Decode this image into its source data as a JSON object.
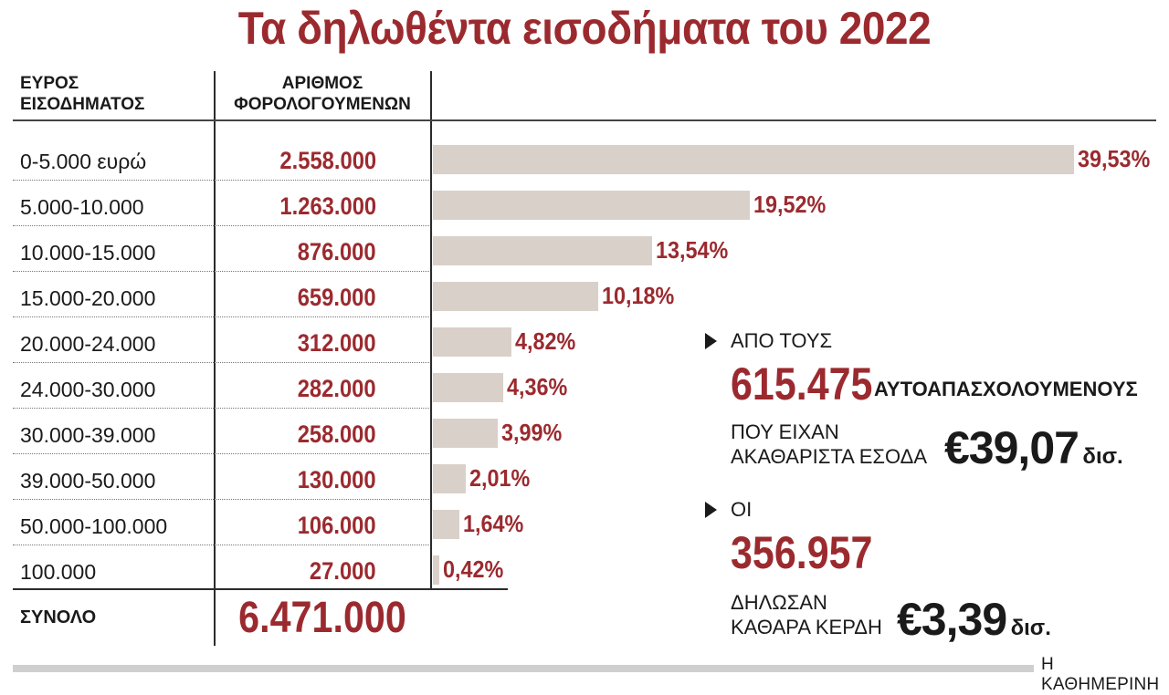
{
  "title": "Τα δηλωθέντα εισοδήματα του 2022",
  "chart_data": {
    "type": "bar",
    "orientation": "horizontal",
    "columns": {
      "range_header": [
        "ΕΥΡΟΣ",
        "ΕΙΣΟΔΗΜΑΤΟΣ"
      ],
      "count_header": [
        "ΑΡΙΘΜΟΣ",
        "ΦΟΡΟΛΟΓΟΥΜΕΝΩΝ"
      ]
    },
    "rows": [
      {
        "range": "0-5.000 ευρώ",
        "count": "2.558.000",
        "percent": 39.53,
        "percent_label": "39,53%"
      },
      {
        "range": "5.000-10.000",
        "count": "1.263.000",
        "percent": 19.52,
        "percent_label": "19,52%"
      },
      {
        "range": "10.000-15.000",
        "count": "876.000",
        "percent": 13.54,
        "percent_label": "13,54%"
      },
      {
        "range": "15.000-20.000",
        "count": "659.000",
        "percent": 10.18,
        "percent_label": "10,18%"
      },
      {
        "range": "20.000-24.000",
        "count": "312.000",
        "percent": 4.82,
        "percent_label": "4,82%"
      },
      {
        "range": "24.000-30.000",
        "count": "282.000",
        "percent": 4.36,
        "percent_label": "4,36%"
      },
      {
        "range": "30.000-39.000",
        "count": "258.000",
        "percent": 3.99,
        "percent_label": "3,99%"
      },
      {
        "range": "39.000-50.000",
        "count": "130.000",
        "percent": 2.01,
        "percent_label": "2,01%"
      },
      {
        "range": "50.000-100.000",
        "count": "106.000",
        "percent": 1.64,
        "percent_label": "1,64%"
      },
      {
        "range": "100.000",
        "count": "27.000",
        "percent": 0.42,
        "percent_label": "0,42%"
      }
    ],
    "total": {
      "label": "ΣΥΝΟΛΟ",
      "value": "6.471.000"
    },
    "bar_color": "#d9d0c9",
    "accent_color": "#9b2a2f"
  },
  "annotations": {
    "self_employed": {
      "intro": "ΑΠΟ ΤΟΥΣ",
      "number": "615.475",
      "label": "ΑΥΤΟΑΠΑΣΧΟΛΟΥΜΕΝΟΥΣ",
      "line1": "ΠΟΥ ΕΙΧΑΝ",
      "line2": "ΑΚΑΘΑΡΙΣΤΑ ΕΣΟΔΑ",
      "amount": "€39,07",
      "unit": "δισ."
    },
    "profit": {
      "intro": "ΟΙ",
      "number": "356.957",
      "line1": "ΔΗΛΩΣΑΝ",
      "line2": "ΚΑΘΑΡΑ ΚΕΡΔΗ",
      "amount": "€3,39",
      "unit": "δισ."
    }
  },
  "footer": {
    "source": "Η ΚΑΘΗΜΕΡΙΝΗ"
  }
}
